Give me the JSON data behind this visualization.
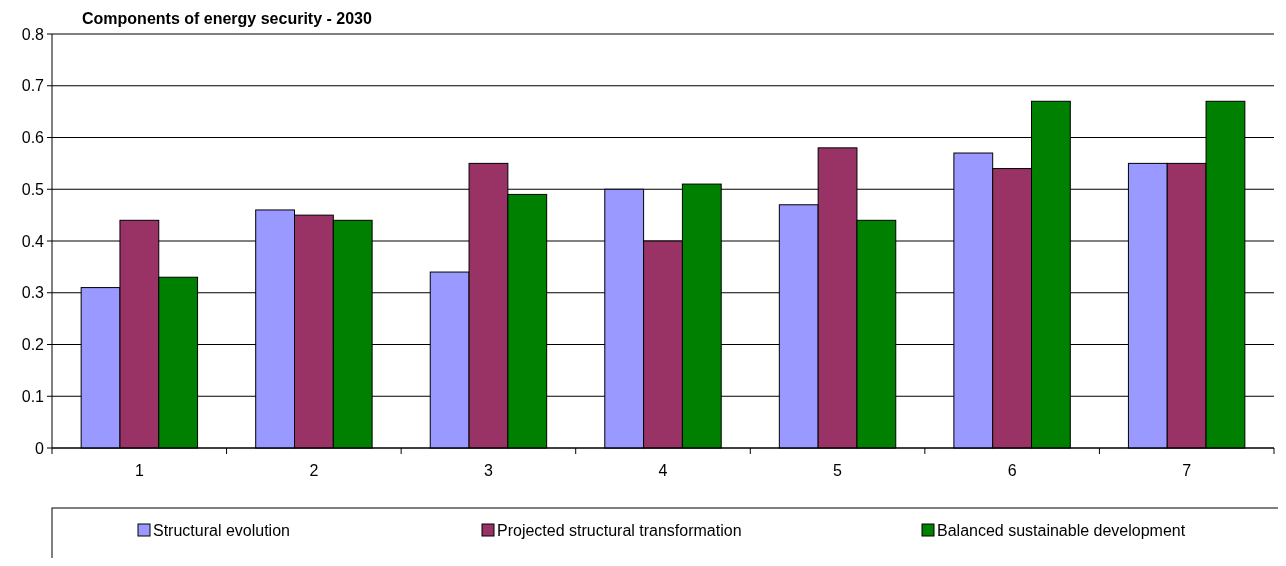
{
  "chart_data": {
    "type": "bar",
    "title": "Components of energy security - 2030",
    "categories": [
      "1",
      "2",
      "3",
      "4",
      "5",
      "6",
      "7"
    ],
    "series": [
      {
        "name": "Structural evolution",
        "color": "#9999ff",
        "values": [
          0.31,
          0.46,
          0.34,
          0.5,
          0.47,
          0.57,
          0.55
        ]
      },
      {
        "name": "Projected structural transformation",
        "color": "#993366",
        "values": [
          0.44,
          0.45,
          0.55,
          0.4,
          0.58,
          0.54,
          0.55
        ]
      },
      {
        "name": "Balanced sustainable development",
        "color": "#008000",
        "values": [
          0.33,
          0.44,
          0.49,
          0.51,
          0.44,
          0.67,
          0.67
        ]
      }
    ],
    "ylim": [
      0,
      0.8
    ],
    "yticks": [
      0,
      0.1,
      0.2,
      0.3,
      0.4,
      0.5,
      0.6,
      0.7,
      0.8
    ],
    "grid": "y",
    "legend": "bottom"
  }
}
